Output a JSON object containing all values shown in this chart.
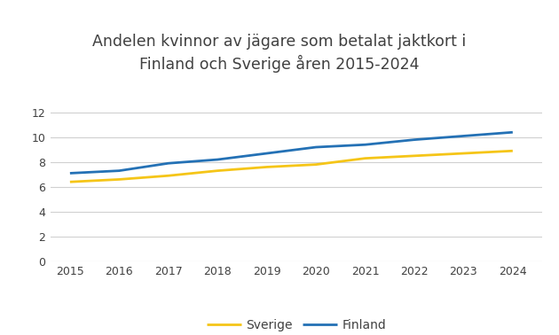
{
  "title": "Andelen kvinnor av jägare som betalat jaktkort i\nFinland och Sverige åren 2015-2024",
  "years": [
    2015,
    2016,
    2017,
    2018,
    2019,
    2020,
    2021,
    2022,
    2023,
    2024
  ],
  "sverige": [
    6.4,
    6.6,
    6.9,
    7.3,
    7.6,
    7.8,
    8.3,
    8.5,
    8.7,
    8.9
  ],
  "finland": [
    7.1,
    7.3,
    7.9,
    8.2,
    8.7,
    9.2,
    9.4,
    9.8,
    10.1,
    10.4
  ],
  "sverige_color": "#F5C518",
  "finland_color": "#2471B5",
  "background_color": "#FFFFFF",
  "grid_color": "#D0D0D0",
  "title_color": "#404040",
  "ylim": [
    0,
    13.5
  ],
  "yticks": [
    0,
    2,
    4,
    6,
    8,
    10,
    12
  ],
  "legend_labels": [
    "Sverige",
    "Finland"
  ],
  "linewidth": 2.0
}
